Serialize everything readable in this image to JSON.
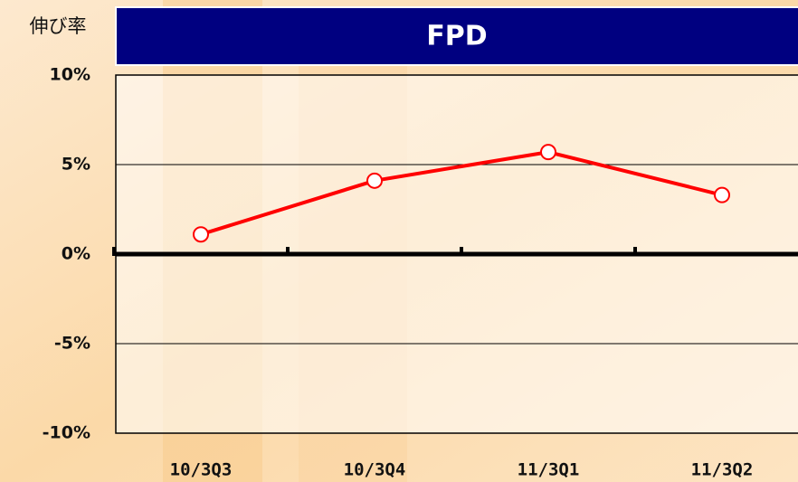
{
  "chart_data": {
    "type": "line",
    "title": "FPD",
    "y_label": "伸び率",
    "categories": [
      "10/3Q3",
      "10/3Q4",
      "11/3Q1",
      "11/3Q2"
    ],
    "values": [
      1.1,
      4.1,
      5.7,
      3.3
    ],
    "color": "#ff0000",
    "ylim": [
      -10,
      10
    ],
    "yticks": [
      {
        "value": -10,
        "label": "-10%"
      },
      {
        "value": -5,
        "label": "-5%"
      },
      {
        "value": 0,
        "label": "0%"
      },
      {
        "value": 5,
        "label": "5%"
      },
      {
        "value": 10,
        "label": "10%"
      }
    ],
    "grid": true
  }
}
